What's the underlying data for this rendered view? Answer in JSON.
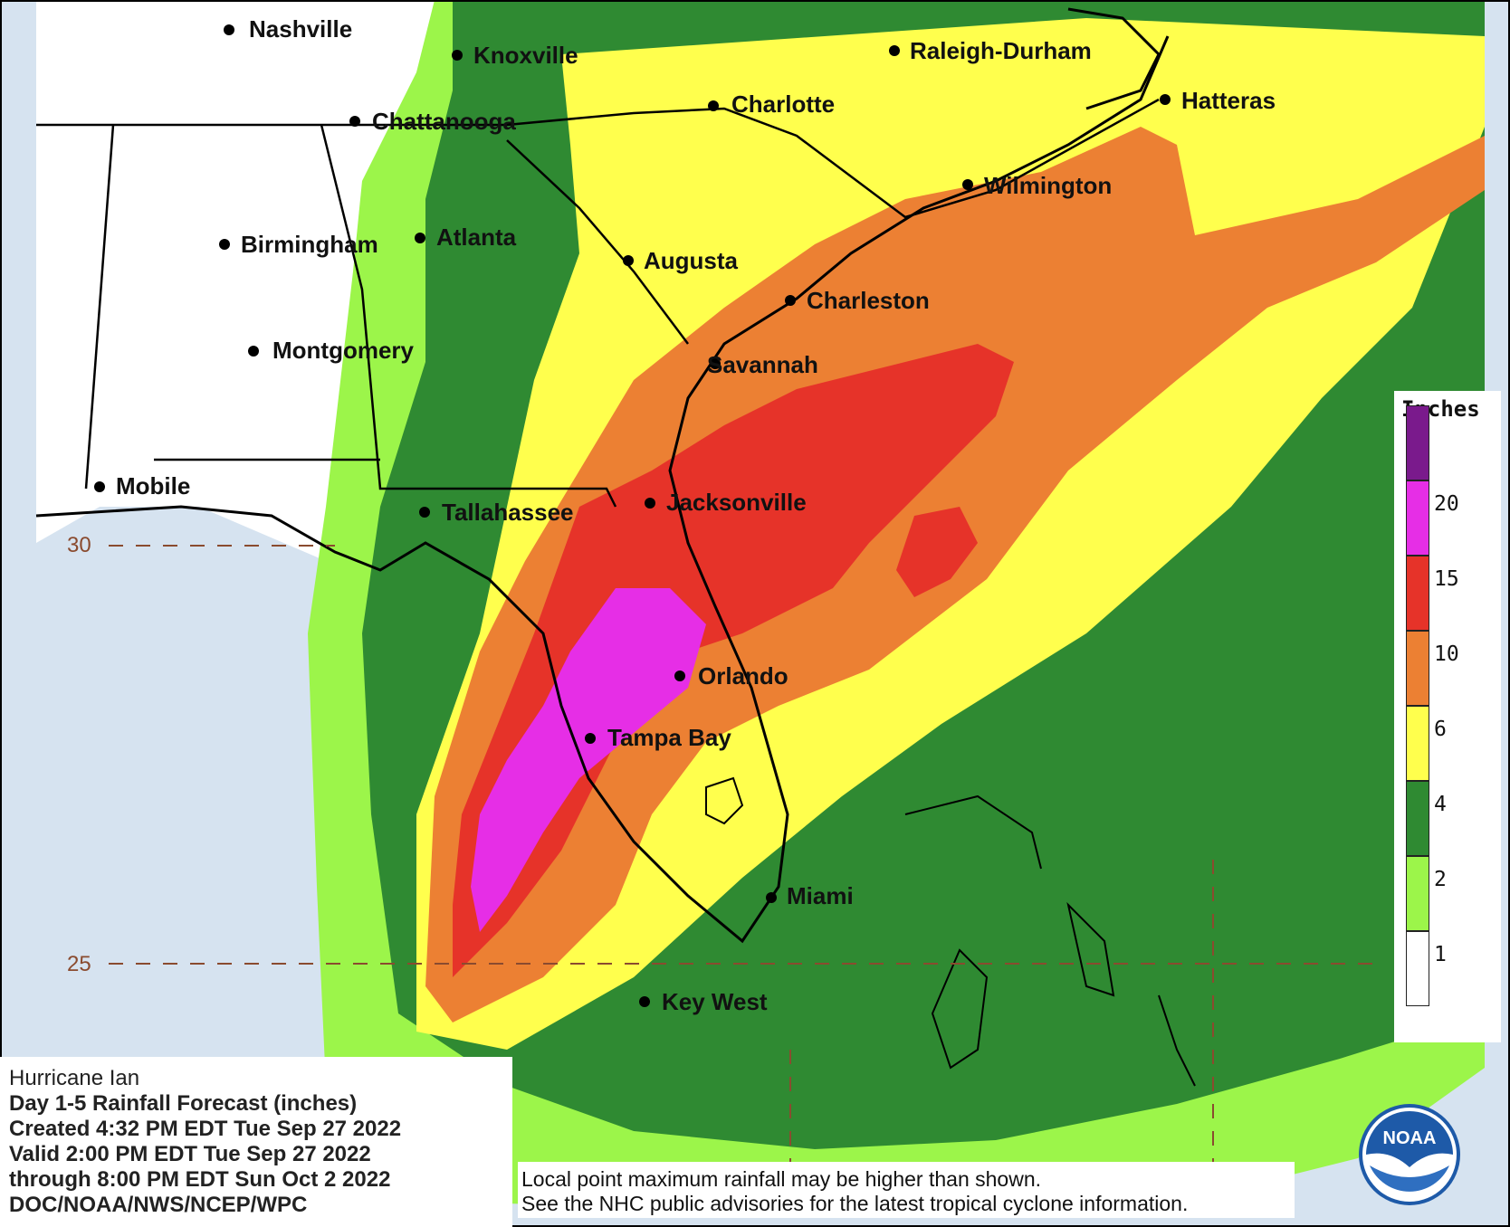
{
  "map": {
    "cities": [
      {
        "name": "Nashville"
      },
      {
        "name": "Knoxville"
      },
      {
        "name": "Raleigh-Durham"
      },
      {
        "name": "Charlotte"
      },
      {
        "name": "Hatteras"
      },
      {
        "name": "Chattanooga"
      },
      {
        "name": "Wilmington"
      },
      {
        "name": "Birmingham"
      },
      {
        "name": "Atlanta"
      },
      {
        "name": "Augusta"
      },
      {
        "name": "Charleston"
      },
      {
        "name": "Montgomery"
      },
      {
        "name": "Savannah"
      },
      {
        "name": "Mobile"
      },
      {
        "name": "Tallahassee"
      },
      {
        "name": "Jacksonville"
      },
      {
        "name": "Orlando"
      },
      {
        "name": "Tampa Bay"
      },
      {
        "name": "Miami"
      },
      {
        "name": "Key West"
      }
    ],
    "latitude_labels": [
      "30",
      "25"
    ]
  },
  "legend": {
    "title": "Inches",
    "ticks": [
      "20",
      "15",
      "10",
      "6",
      "4",
      "2",
      "1"
    ],
    "bins": [
      {
        "color": "#7a1a8c"
      },
      {
        "color": "#e62ee6"
      },
      {
        "color": "#e63329"
      },
      {
        "color": "#ec8033"
      },
      {
        "color": "#ffff4d"
      },
      {
        "color": "#2f8a32"
      },
      {
        "color": "#9cf54a"
      },
      {
        "color": "#ffffff"
      }
    ],
    "colors": {
      "ocean": "#d6e3f0",
      "zero": "#ffffff",
      "one_to_two": "#9cf54a",
      "two_to_four": "#2f8a32",
      "four_to_six": "#ffff4d",
      "six_to_ten": "#ec8033",
      "ten_to_fifteen": "#e63329",
      "fifteen_to_twenty": "#e62ee6",
      "twenty_plus": "#7a1a8c"
    }
  },
  "info": {
    "title": "Hurricane Ian",
    "product": "Day 1-5 Rainfall Forecast (inches)",
    "created": "Created 4:32 PM EDT Tue Sep 27 2022",
    "valid": "Valid 2:00 PM EDT Tue Sep 27 2022",
    "through": "through 8:00 PM EDT Sun Oct 2 2022",
    "source": "DOC/NOAA/NWS/NCEP/WPC"
  },
  "notice": {
    "line1": "Local point maximum rainfall may be higher than shown.",
    "line2": "See the NHC public advisories for the latest tropical cyclone information."
  },
  "logo": {
    "text": "NOAA"
  }
}
